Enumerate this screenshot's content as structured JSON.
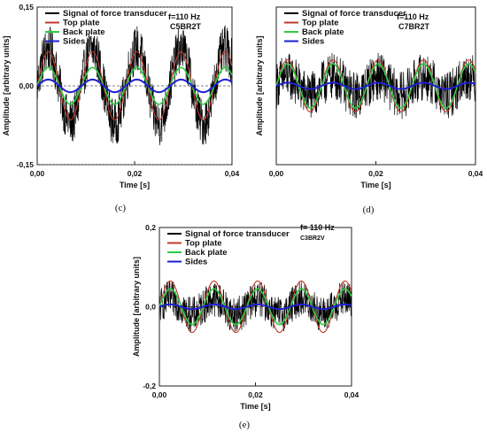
{
  "colors": {
    "signal": "#000000",
    "top_plate": "#c0392b",
    "back_plate": "#2ecc40",
    "sides": "#1f1fd0"
  },
  "chart_data": [
    {
      "id": "c",
      "type": "line",
      "caption": "(c)",
      "annotation": [
        "f=110 Hz",
        "C5BR2T"
      ],
      "xlabel": "Time [s]",
      "ylabel": "Amplitude [arbitrary units]",
      "xlim": [
        0,
        0.04
      ],
      "ylim": [
        -0.15,
        0.15
      ],
      "xticks": [
        0,
        0.02,
        0.04
      ],
      "xtick_labels": [
        "0,00",
        "0,02",
        "0,04"
      ],
      "yticks": [
        -0.15,
        0,
        0.15
      ],
      "ytick_labels": [
        "-0,15",
        "0,00",
        "0,15"
      ],
      "legend_position": "top",
      "frequency_hz": 110,
      "series": [
        {
          "name": "Signal of force transducer",
          "amplitude": 0.07,
          "noise": 0.045
        },
        {
          "name": "Top plate",
          "amplitude": 0.065,
          "noise": 0
        },
        {
          "name": "Back plate",
          "amplitude": 0.035,
          "noise": 0
        },
        {
          "name": "Sides",
          "amplitude": 0.012,
          "noise": 0
        }
      ]
    },
    {
      "id": "d",
      "type": "line",
      "caption": "(d)",
      "annotation": [
        "f=110 Hz",
        "C7BR2T"
      ],
      "xlabel": "Time [s]",
      "ylabel": "Amplitude [arbitrary units]",
      "xlim": [
        0,
        0.04
      ],
      "ylim": [
        -0.1,
        0.1
      ],
      "xticks": [
        0,
        0.02,
        0.04
      ],
      "xtick_labels": [
        "0,00",
        "0,02",
        "0,04"
      ],
      "yticks": [],
      "ytick_labels": [],
      "legend_position": "top",
      "frequency_hz": 110,
      "series": [
        {
          "name": "Signal of force transducer",
          "amplitude": 0.012,
          "noise": 0.03
        },
        {
          "name": "Top plate",
          "amplitude": 0.033,
          "noise": 0
        },
        {
          "name": "Back plate",
          "amplitude": 0.028,
          "noise": 0
        },
        {
          "name": "Sides",
          "amplitude": 0.004,
          "noise": 0
        }
      ]
    },
    {
      "id": "e",
      "type": "line",
      "caption": "(e)",
      "annotation": [
        "f= 110 Hz",
        "C3BR2V"
      ],
      "xlabel": "Time [s]",
      "ylabel": "Amplitude [arbitrary units]",
      "xlim": [
        0,
        0.04
      ],
      "ylim": [
        -0.2,
        0.2
      ],
      "xticks": [
        0,
        0.02,
        0.04
      ],
      "xtick_labels": [
        "0,00",
        "0,02",
        "0,04"
      ],
      "yticks": [
        -0.2,
        0,
        0.2
      ],
      "ytick_labels": [
        "-0,2",
        "0,0",
        "0,2"
      ],
      "legend_position": "top",
      "frequency_hz": 110,
      "series": [
        {
          "name": "Signal of force transducer",
          "amplitude": 0.02,
          "noise": 0.045
        },
        {
          "name": "Top plate",
          "amplitude": 0.065,
          "noise": 0
        },
        {
          "name": "Back plate",
          "amplitude": 0.045,
          "noise": 0
        },
        {
          "name": "Sides",
          "amplitude": 0.006,
          "noise": 0
        }
      ]
    }
  ]
}
